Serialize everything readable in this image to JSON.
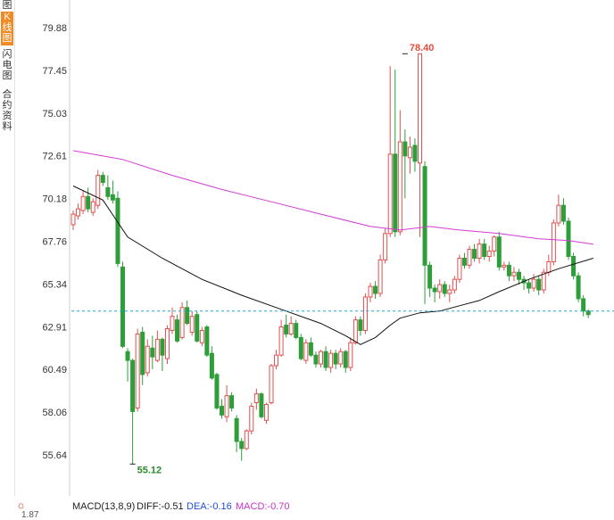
{
  "sidebar": {
    "tabs": [
      {
        "label": "图",
        "active": false
      },
      {
        "label": "K线图",
        "active": true
      },
      {
        "label": "闪电图",
        "active": false
      },
      {
        "label": "合约资料",
        "active": false
      }
    ]
  },
  "macd": {
    "title": "MACD(13,8,9)",
    "diff": "DIFF:-0.51",
    "dea": "DEA:-0.16",
    "macd": "MACD:-0.70",
    "axis_value": "1.87",
    "colors": {
      "title": "#222222",
      "diff": "#222222",
      "dea": "#1f4fd6",
      "macd": "#c832c8"
    }
  },
  "chart_data": {
    "type": "candlestick",
    "y_ticks": [
      "79.88",
      "77.45",
      "75.03",
      "72.61",
      "70.18",
      "67.76",
      "65.34",
      "62.91",
      "60.49",
      "58.06",
      "55.64"
    ],
    "ylim": [
      53.9,
      81.6
    ],
    "annotations": [
      {
        "text": "78.40",
        "value": 78.4,
        "index": 67,
        "color": "#e74c3c"
      },
      {
        "text": "55.12",
        "value": 55.12,
        "index": 12,
        "color": "#2e8b2e"
      }
    ],
    "reference_line": {
      "value": 63.8,
      "color": "#2aa7d9",
      "style": "dashed"
    },
    "candles": [
      [
        68.7,
        69.3,
        68.4,
        69.5
      ],
      [
        69.2,
        69.6,
        69.0,
        69.9
      ],
      [
        69.5,
        70.3,
        69.3,
        70.6
      ],
      [
        70.3,
        69.6,
        69.4,
        70.8
      ],
      [
        69.4,
        70.0,
        69.2,
        70.2
      ],
      [
        69.8,
        71.5,
        69.6,
        71.8
      ],
      [
        71.5,
        71.1,
        70.9,
        71.7
      ],
      [
        70.8,
        70.3,
        70.1,
        71.5
      ],
      [
        70.4,
        70.1,
        69.9,
        71.2
      ],
      [
        70.2,
        66.5,
        66.3,
        70.6
      ],
      [
        66.3,
        61.8,
        61.7,
        66.6
      ],
      [
        61.5,
        61.0,
        59.8,
        61.7
      ],
      [
        61.0,
        58.1,
        55.12,
        61.1
      ],
      [
        58.3,
        62.5,
        58.1,
        62.8
      ],
      [
        62.6,
        60.2,
        59.6,
        62.9
      ],
      [
        60.3,
        61.8,
        60.1,
        62.2
      ],
      [
        61.7,
        61.2,
        60.5,
        62.4
      ],
      [
        61.0,
        62.2,
        60.9,
        62.7
      ],
      [
        62.2,
        61.3,
        60.4,
        62.3
      ],
      [
        61.1,
        62.8,
        60.8,
        63.0
      ],
      [
        62.7,
        63.5,
        62.5,
        64.0
      ],
      [
        63.3,
        62.1,
        62.0,
        63.6
      ],
      [
        62.3,
        64.0,
        62.2,
        64.3
      ],
      [
        64.0,
        63.1,
        63.0,
        64.4
      ],
      [
        62.6,
        63.5,
        62.4,
        63.8
      ],
      [
        63.6,
        62.1,
        62.0,
        63.8
      ],
      [
        62.0,
        62.7,
        61.8,
        62.9
      ],
      [
        62.9,
        61.3,
        61.2,
        63.0
      ],
      [
        61.4,
        60.0,
        59.9,
        61.8
      ],
      [
        60.2,
        58.3,
        58.2,
        60.3
      ],
      [
        58.4,
        57.9,
        57.7,
        58.8
      ],
      [
        57.8,
        59.0,
        57.5,
        59.6
      ],
      [
        59.0,
        58.3,
        58.1,
        59.2
      ],
      [
        57.7,
        56.4,
        55.8,
        57.9
      ],
      [
        56.4,
        56.0,
        55.3,
        56.6
      ],
      [
        56.0,
        57.0,
        55.9,
        57.1
      ],
      [
        57.0,
        58.4,
        56.8,
        58.6
      ],
      [
        58.6,
        59.1,
        58.2,
        59.4
      ],
      [
        59.1,
        57.8,
        57.7,
        59.2
      ],
      [
        57.6,
        58.5,
        57.4,
        58.6
      ],
      [
        58.6,
        60.7,
        58.5,
        60.8
      ],
      [
        60.7,
        61.3,
        60.5,
        61.6
      ],
      [
        61.3,
        62.9,
        61.2,
        63.3
      ],
      [
        63.0,
        62.5,
        62.3,
        63.6
      ],
      [
        62.5,
        63.1,
        62.4,
        63.5
      ],
      [
        63.1,
        62.3,
        62.2,
        63.3
      ],
      [
        62.3,
        61.1,
        61.0,
        62.5
      ],
      [
        61.0,
        62.0,
        60.8,
        62.2
      ],
      [
        62.0,
        61.3,
        61.2,
        62.3
      ],
      [
        61.3,
        60.8,
        60.6,
        61.5
      ],
      [
        60.8,
        61.5,
        60.6,
        61.6
      ],
      [
        61.5,
        60.6,
        60.4,
        61.8
      ],
      [
        60.6,
        61.4,
        60.3,
        61.6
      ],
      [
        61.4,
        60.8,
        60.5,
        61.6
      ],
      [
        60.8,
        61.5,
        60.6,
        61.7
      ],
      [
        61.5,
        60.6,
        60.3,
        61.6
      ],
      [
        60.6,
        62.0,
        60.4,
        62.3
      ],
      [
        62.0,
        63.3,
        61.9,
        63.5
      ],
      [
        63.3,
        62.7,
        62.4,
        63.5
      ],
      [
        62.7,
        64.6,
        62.5,
        64.8
      ],
      [
        64.6,
        65.2,
        64.3,
        65.4
      ],
      [
        65.2,
        64.8,
        64.5,
        65.5
      ],
      [
        64.8,
        66.7,
        64.6,
        67.0
      ],
      [
        66.7,
        68.2,
        66.5,
        68.5
      ],
      [
        68.2,
        72.7,
        68.0,
        77.7
      ],
      [
        72.7,
        68.3,
        68.0,
        77.5
      ],
      [
        68.3,
        73.4,
        68.1,
        75.2
      ],
      [
        73.4,
        72.6,
        70.2,
        74.1
      ],
      [
        72.5,
        73.1,
        71.6,
        73.7
      ],
      [
        73.2,
        72.3,
        71.7,
        73.6
      ],
      [
        72.2,
        78.4,
        68.0,
        78.4
      ],
      [
        72.0,
        66.4,
        64.2,
        72.3
      ],
      [
        66.4,
        65.1,
        64.6,
        66.6
      ],
      [
        65.1,
        64.9,
        64.3,
        65.3
      ],
      [
        64.9,
        65.3,
        64.5,
        65.6
      ],
      [
        65.3,
        64.8,
        64.6,
        65.5
      ],
      [
        64.8,
        65.0,
        64.3,
        65.3
      ],
      [
        65.0,
        65.6,
        64.8,
        65.8
      ],
      [
        65.6,
        66.8,
        65.4,
        67.0
      ],
      [
        66.8,
        66.4,
        66.2,
        67.1
      ],
      [
        66.4,
        67.3,
        66.2,
        67.5
      ],
      [
        67.3,
        66.8,
        66.6,
        67.6
      ],
      [
        66.8,
        67.6,
        66.5,
        67.9
      ],
      [
        67.6,
        66.9,
        66.7,
        67.9
      ],
      [
        66.9,
        67.2,
        66.6,
        67.5
      ],
      [
        67.2,
        68.0,
        66.9,
        68.1
      ],
      [
        68.0,
        66.3,
        66.1,
        68.3
      ],
      [
        66.3,
        66.4,
        66.1,
        66.6
      ],
      [
        66.4,
        65.8,
        65.5,
        66.6
      ],
      [
        65.8,
        66.0,
        65.5,
        66.3
      ],
      [
        66.0,
        65.6,
        65.3,
        66.2
      ],
      [
        65.6,
        65.4,
        65.0,
        65.8
      ],
      [
        65.4,
        65.1,
        64.8,
        65.6
      ],
      [
        65.1,
        65.6,
        64.9,
        65.9
      ],
      [
        65.6,
        65.0,
        64.7,
        65.8
      ],
      [
        65.0,
        66.0,
        64.8,
        66.2
      ],
      [
        66.0,
        66.6,
        65.8,
        67.0
      ],
      [
        66.6,
        68.8,
        66.4,
        69.0
      ],
      [
        68.8,
        69.8,
        68.6,
        70.4
      ],
      [
        69.8,
        68.9,
        68.7,
        70.2
      ],
      [
        68.9,
        66.9,
        66.7,
        69.1
      ],
      [
        66.9,
        65.8,
        65.6,
        67.1
      ],
      [
        65.8,
        64.5,
        64.3,
        66.0
      ],
      [
        64.5,
        63.8,
        63.5,
        64.7
      ],
      [
        63.8,
        63.6,
        63.4,
        63.9
      ]
    ],
    "ma_black": [
      [
        0,
        70.9
      ],
      [
        6,
        70.1
      ],
      [
        11,
        68.0
      ],
      [
        18,
        66.8
      ],
      [
        26,
        65.6
      ],
      [
        34,
        64.7
      ],
      [
        42,
        63.9
      ],
      [
        50,
        63.1
      ],
      [
        55,
        62.4
      ],
      [
        58,
        61.9
      ],
      [
        61,
        62.3
      ],
      [
        64,
        63.0
      ],
      [
        66,
        63.4
      ],
      [
        70,
        63.7
      ],
      [
        74,
        63.8
      ],
      [
        78,
        64.1
      ],
      [
        82,
        64.4
      ],
      [
        86,
        64.9
      ],
      [
        92,
        65.6
      ],
      [
        98,
        66.2
      ],
      [
        105,
        66.8
      ]
    ],
    "ma_magenta": [
      [
        0,
        72.9
      ],
      [
        10,
        72.4
      ],
      [
        20,
        71.5
      ],
      [
        30,
        70.7
      ],
      [
        40,
        70.0
      ],
      [
        50,
        69.3
      ],
      [
        60,
        68.6
      ],
      [
        66,
        68.4
      ],
      [
        72,
        68.6
      ],
      [
        78,
        68.4
      ],
      [
        86,
        68.2
      ],
      [
        94,
        67.9
      ],
      [
        100,
        67.8
      ],
      [
        105,
        67.6
      ]
    ]
  }
}
